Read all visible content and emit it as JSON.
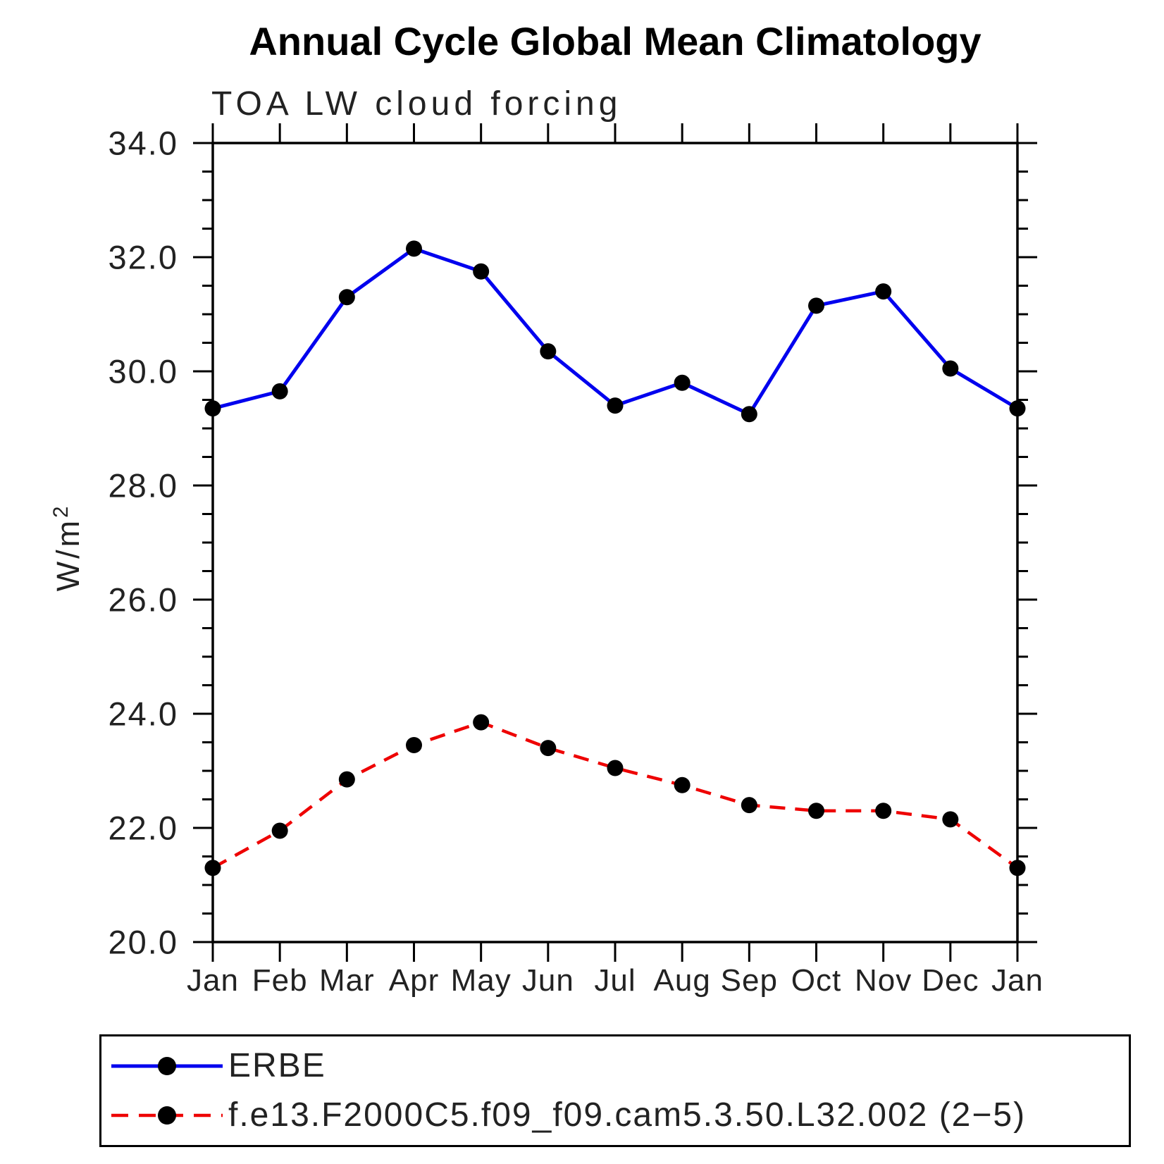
{
  "chart_data": {
    "type": "line",
    "title": "Annual Cycle Global Mean Climatology",
    "subtitle": "TOA LW cloud forcing",
    "ylabel_base": "W/m",
    "ylabel_sup": "2",
    "xlabel": "",
    "categories": [
      "Jan",
      "Feb",
      "Mar",
      "Apr",
      "May",
      "Jun",
      "Jul",
      "Aug",
      "Sep",
      "Oct",
      "Nov",
      "Dec",
      "Jan"
    ],
    "ylim": [
      20.0,
      34.0
    ],
    "ytick_major": [
      20,
      22,
      24,
      26,
      28,
      30,
      32,
      34
    ],
    "ytick_labels": [
      "20.0",
      "22.0",
      "24.0",
      "26.0",
      "28.0",
      "30.0",
      "32.0",
      "34.0"
    ],
    "ytick_minor_step": 0.5,
    "grid": "off",
    "legend_position": "bottom",
    "axis_color": "#000000",
    "text_color": "#222222",
    "series": [
      {
        "name": "ERBE",
        "color": "#0000ee",
        "style": "solid",
        "marker": "circle",
        "marker_color": "#000000",
        "values": [
          29.35,
          29.65,
          31.3,
          32.15,
          31.75,
          30.35,
          29.4,
          29.8,
          29.25,
          31.15,
          31.4,
          30.05,
          29.35
        ]
      },
      {
        "name": "f.e13.F2000C5.f09_f09.cam5.3.50.L32.002 (2−5)",
        "color": "#ee0000",
        "style": "dashed",
        "marker": "circle",
        "marker_color": "#000000",
        "values": [
          21.3,
          21.95,
          22.85,
          23.45,
          23.85,
          23.4,
          23.05,
          22.75,
          22.4,
          22.3,
          22.3,
          22.15,
          21.3
        ]
      }
    ]
  }
}
